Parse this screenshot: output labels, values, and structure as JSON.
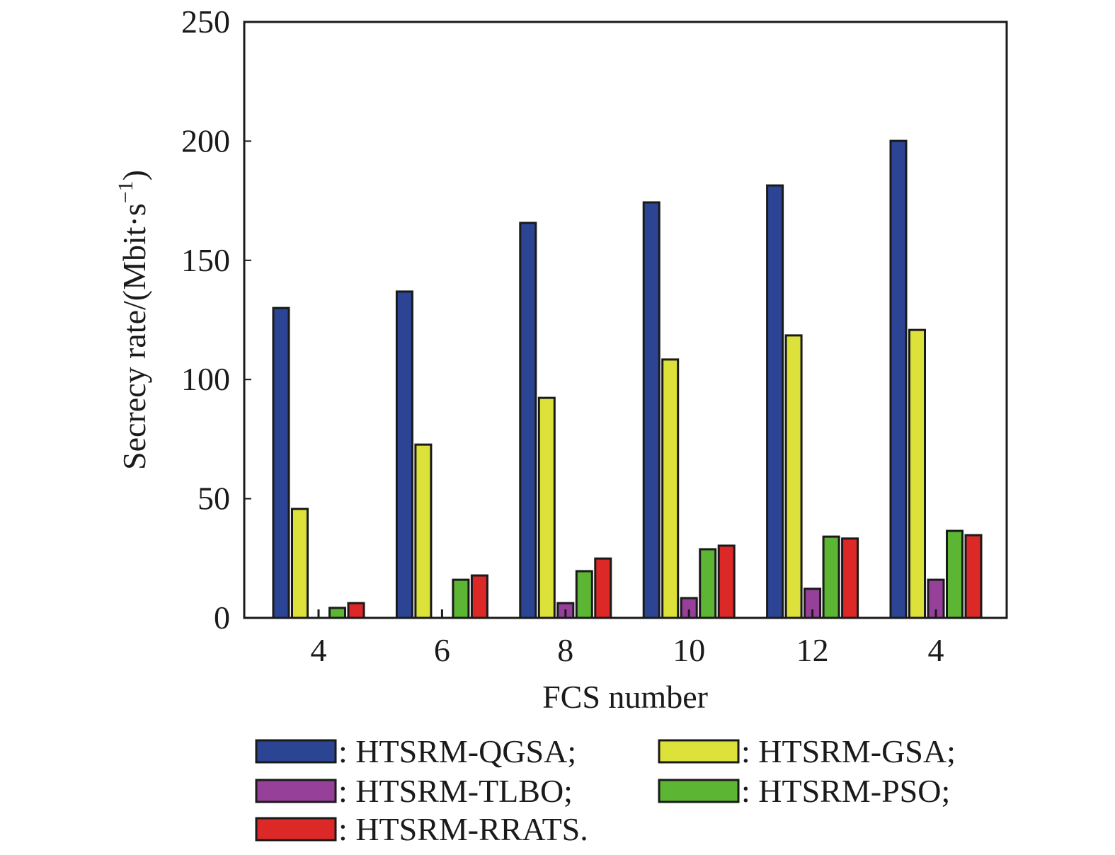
{
  "chart_data": {
    "type": "bar",
    "xlabel": "FCS number",
    "ylabel": "Secrecy rate/(Mbit·s",
    "ylabel_sup": "−1",
    "ylabel_close": ")",
    "ylim": [
      0,
      250
    ],
    "yticks": [
      "0",
      "50",
      "100",
      "150",
      "200",
      "250"
    ],
    "categories": [
      "4",
      "6",
      "8",
      "10",
      "12",
      "4"
    ],
    "legend_position": "bottom",
    "series": [
      {
        "name": ": HTSRM-QGSA;",
        "color": "#2b4594",
        "values": [
          130,
          136.9,
          165.7,
          174.3,
          181.4,
          200.1
        ]
      },
      {
        "name": ": HTSRM-GSA;",
        "color": "#dde23a",
        "values": [
          45.7,
          72.7,
          92.3,
          108.4,
          118.5,
          120.8
        ]
      },
      {
        "name": ": HTSRM-TLBO;",
        "color": "#96409a",
        "values": [
          0,
          0,
          6.2,
          8.3,
          12.2,
          16
        ]
      },
      {
        "name": ": HTSRM-PSO;",
        "color": "#5cb533",
        "values": [
          4.2,
          16,
          19.6,
          28.8,
          34.1,
          36.5
        ]
      },
      {
        "name": ": HTSRM-RRATS.",
        "color": "#dc2827",
        "values": [
          6.2,
          17.8,
          24.9,
          30.3,
          33.3,
          34.7
        ]
      }
    ]
  }
}
